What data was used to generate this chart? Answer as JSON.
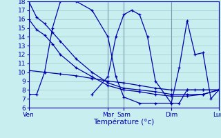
{
  "xlabel": "Température (°c)",
  "bg_color": "#c8eef0",
  "grid_color": "#a0cccc",
  "line_color": "#0000aa",
  "ylim": [
    6,
    18
  ],
  "xlim": [
    0,
    240
  ],
  "xtick_positions": [
    0,
    100,
    120,
    180,
    240
  ],
  "xtick_labels": [
    "Ven",
    "Mar",
    "Sam",
    "Dim",
    "Lun"
  ],
  "vlines": [
    100,
    120,
    180,
    240
  ],
  "series": [
    {
      "x": [
        0,
        10,
        20,
        30,
        40,
        60,
        80,
        100,
        120,
        140,
        160,
        180,
        200,
        220,
        240
      ],
      "y": [
        18,
        16.2,
        15.5,
        14.5,
        13.5,
        11.5,
        10.0,
        8.8,
        8.2,
        8.0,
        7.8,
        7.5,
        7.5,
        7.5,
        8.0
      ]
    },
    {
      "x": [
        0,
        10,
        20,
        30,
        40,
        60,
        80,
        100,
        120,
        140,
        160,
        180,
        200,
        220,
        240
      ],
      "y": [
        16,
        14.8,
        14.2,
        13.2,
        12.0,
        10.5,
        9.5,
        8.5,
        8.0,
        7.8,
        7.5,
        7.3,
        7.3,
        7.5,
        8.0
      ]
    },
    {
      "x": [
        0,
        20,
        40,
        60,
        80,
        100,
        120,
        140,
        160,
        180,
        200,
        220,
        240
      ],
      "y": [
        10.2,
        10.0,
        9.8,
        9.6,
        9.3,
        9.0,
        8.8,
        8.5,
        8.2,
        8.0,
        8.0,
        8.0,
        8.0
      ]
    },
    {
      "x": [
        0,
        10,
        20,
        30,
        40,
        60,
        80,
        100,
        110,
        120,
        140,
        160,
        180,
        190,
        200,
        210,
        220,
        240
      ],
      "y": [
        7.5,
        7.5,
        10.0,
        15.0,
        18.0,
        18.0,
        17.0,
        14.0,
        9.5,
        7.2,
        6.5,
        6.5,
        6.5,
        6.5,
        8.0,
        8.0,
        8.0,
        8.0
      ]
    },
    {
      "x": [
        80,
        100,
        110,
        120,
        130,
        140,
        150,
        160,
        180,
        190,
        200,
        210,
        220,
        230,
        240
      ],
      "y": [
        7.5,
        9.5,
        14.0,
        16.5,
        17.0,
        16.5,
        14.0,
        9.0,
        6.5,
        10.5,
        15.8,
        12.0,
        12.2,
        7.0,
        8.0
      ]
    }
  ]
}
